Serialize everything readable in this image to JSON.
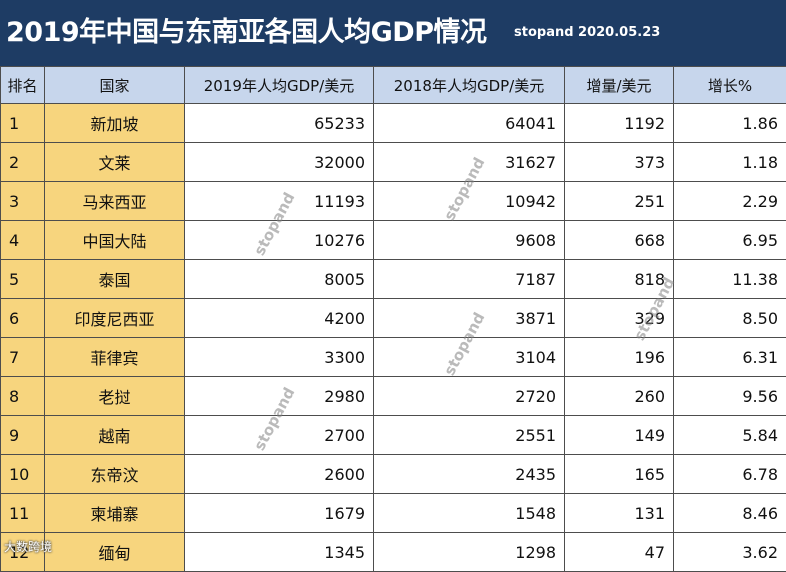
{
  "title": "2019年中国与东南亚各国人均GDP情况",
  "credit": "stopand 2020.05.23",
  "colors": {
    "title_bg": "#1e3c64",
    "header_bg": "#c7d6ec",
    "highlight": "#f7d57e"
  },
  "headers": [
    "排名",
    "国家",
    "2019年人均GDP/美元",
    "2018年人均GDP/美元",
    "增量/美元",
    "增长%"
  ],
  "rows": [
    [
      "1",
      "新加坡",
      "65233",
      "64041",
      "1192",
      "1.86"
    ],
    [
      "2",
      "文莱",
      "32000",
      "31627",
      "373",
      "1.18"
    ],
    [
      "3",
      "马来西亚",
      "11193",
      "10942",
      "251",
      "2.29"
    ],
    [
      "4",
      "中国大陆",
      "10276",
      "9608",
      "668",
      "6.95"
    ],
    [
      "5",
      "泰国",
      "8005",
      "7187",
      "818",
      "11.38"
    ],
    [
      "6",
      "印度尼西亚",
      "4200",
      "3871",
      "329",
      "8.50"
    ],
    [
      "7",
      "菲律宾",
      "3300",
      "3104",
      "196",
      "6.31"
    ],
    [
      "8",
      "老挝",
      "2980",
      "2720",
      "260",
      "9.56"
    ],
    [
      "9",
      "越南",
      "2700",
      "2551",
      "149",
      "5.84"
    ],
    [
      "10",
      "东帝汶",
      "2600",
      "2435",
      "165",
      "6.78"
    ],
    [
      "11",
      "柬埔寨",
      "1679",
      "1548",
      "131",
      "8.46"
    ],
    [
      "12",
      "缅甸",
      "1345",
      "1298",
      "47",
      "3.62"
    ]
  ],
  "watermark_text": "stopand",
  "corner_brand": "大数跨境"
}
